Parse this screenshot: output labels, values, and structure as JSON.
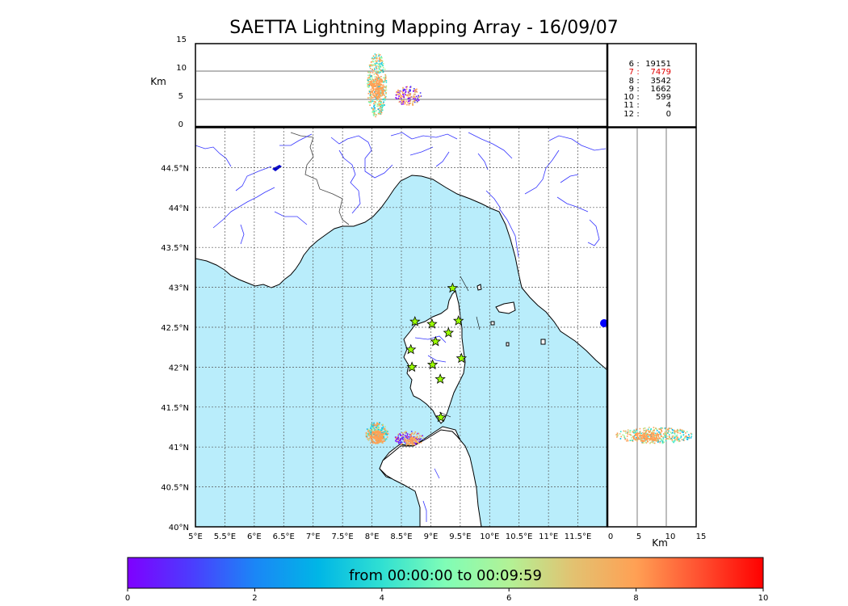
{
  "title": "SAETTA Lightning Mapping Array - 16/09/07",
  "colors": {
    "sea": "#b9edfb",
    "land": "#ffffff",
    "river": "#3333ff",
    "station_fill": "#9aff00",
    "highlight": "#e00000"
  },
  "top_panel": {
    "ylabel": "Km",
    "yticks": [
      "15",
      "10",
      "5",
      "0"
    ]
  },
  "side_panel": {
    "xlabel": "Km",
    "xticks": [
      "0",
      "5",
      "10",
      "15"
    ]
  },
  "map": {
    "lon_range": [
      5,
      12
    ],
    "lat_range": [
      40,
      45
    ],
    "xtick_labels": [
      "5°E",
      "5.5°E",
      "6°E",
      "6.5°E",
      "7°E",
      "7.5°E",
      "8°E",
      "8.5°E",
      "9°E",
      "9.5°E",
      "10°E",
      "10.5°E",
      "11°E",
      "11.5°E"
    ],
    "ytick_labels": [
      "40°N",
      "40.5°N",
      "41°N",
      "41.5°N",
      "42°N",
      "42.5°N",
      "43°N",
      "43.5°N",
      "44°N",
      "44.5°N"
    ],
    "stations": [
      {
        "lon": 9.37,
        "lat": 42.99
      },
      {
        "lon": 8.73,
        "lat": 42.57
      },
      {
        "lon": 9.02,
        "lat": 42.54
      },
      {
        "lon": 9.47,
        "lat": 42.58
      },
      {
        "lon": 9.3,
        "lat": 42.43
      },
      {
        "lon": 9.08,
        "lat": 42.32
      },
      {
        "lon": 8.66,
        "lat": 42.22
      },
      {
        "lon": 9.52,
        "lat": 42.11
      },
      {
        "lon": 8.68,
        "lat": 42.0
      },
      {
        "lon": 9.03,
        "lat": 42.03
      },
      {
        "lon": 9.16,
        "lat": 41.85
      },
      {
        "lon": 9.17,
        "lat": 41.37
      }
    ]
  },
  "counts": [
    {
      "code": "6",
      "value": "19151"
    },
    {
      "code": "7",
      "value": "7479",
      "highlight": true
    },
    {
      "code": "8",
      "value": "3542"
    },
    {
      "code": "9",
      "value": "1662"
    },
    {
      "code": "10",
      "value": "599"
    },
    {
      "code": "11",
      "value": "4"
    },
    {
      "code": "12",
      "value": "0"
    }
  ],
  "colorbar": {
    "text": "from 00:00:00 to 00:09:59",
    "ticks": [
      "0",
      "2",
      "4",
      "6",
      "8",
      "10"
    ]
  }
}
